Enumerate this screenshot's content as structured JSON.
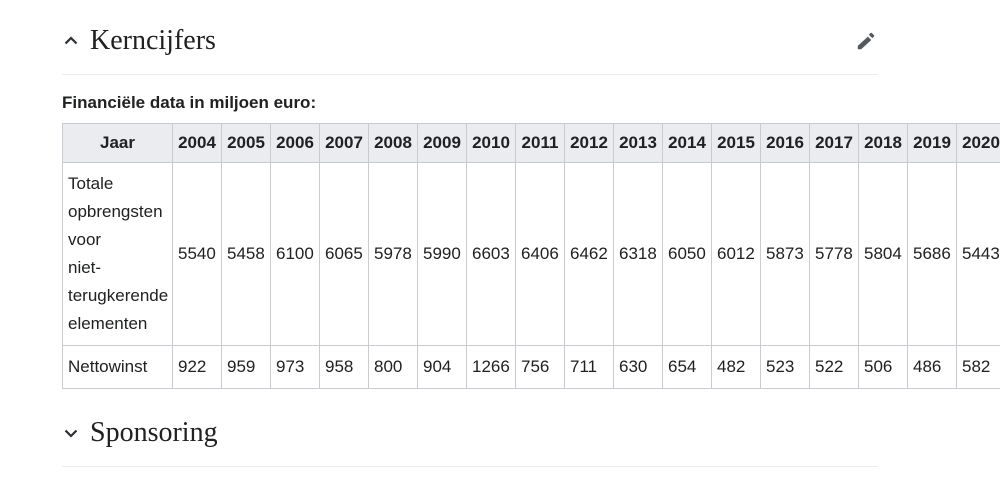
{
  "colors": {
    "table_header_bg": "#eaecf0",
    "table_border": "#c8ccd1",
    "heading_divider": "#eaecf0",
    "text": "#202122",
    "icon": "#54595d"
  },
  "sections": {
    "kerncijfers": {
      "title": "Kerncijfers",
      "state": "expanded",
      "chevron_icon": "chevron-up",
      "edit_icon": "pencil"
    },
    "sponsoring": {
      "title": "Sponsoring",
      "state": "collapsed",
      "chevron_icon": "chevron-down"
    }
  },
  "table": {
    "caption": "Financiële data in miljoen euro:",
    "header": [
      "Jaar",
      "2004",
      "2005",
      "2006",
      "2007",
      "2008",
      "2009",
      "2010",
      "2011",
      "2012",
      "2013",
      "2014",
      "2015",
      "2016",
      "2017",
      "2018",
      "2019",
      "2020"
    ],
    "rows": [
      {
        "label": "Totale\nopbrengsten\nvoor\nniet-\nterugkerende\nelementen",
        "values": [
          5540,
          5458,
          6100,
          6065,
          5978,
          5990,
          6603,
          6406,
          6462,
          6318,
          6050,
          6012,
          5873,
          5778,
          5804,
          5686,
          5443
        ]
      },
      {
        "label": "Nettowinst",
        "values": [
          922,
          959,
          973,
          958,
          800,
          904,
          1266,
          756,
          711,
          630,
          654,
          482,
          523,
          522,
          506,
          486,
          582
        ]
      }
    ]
  }
}
